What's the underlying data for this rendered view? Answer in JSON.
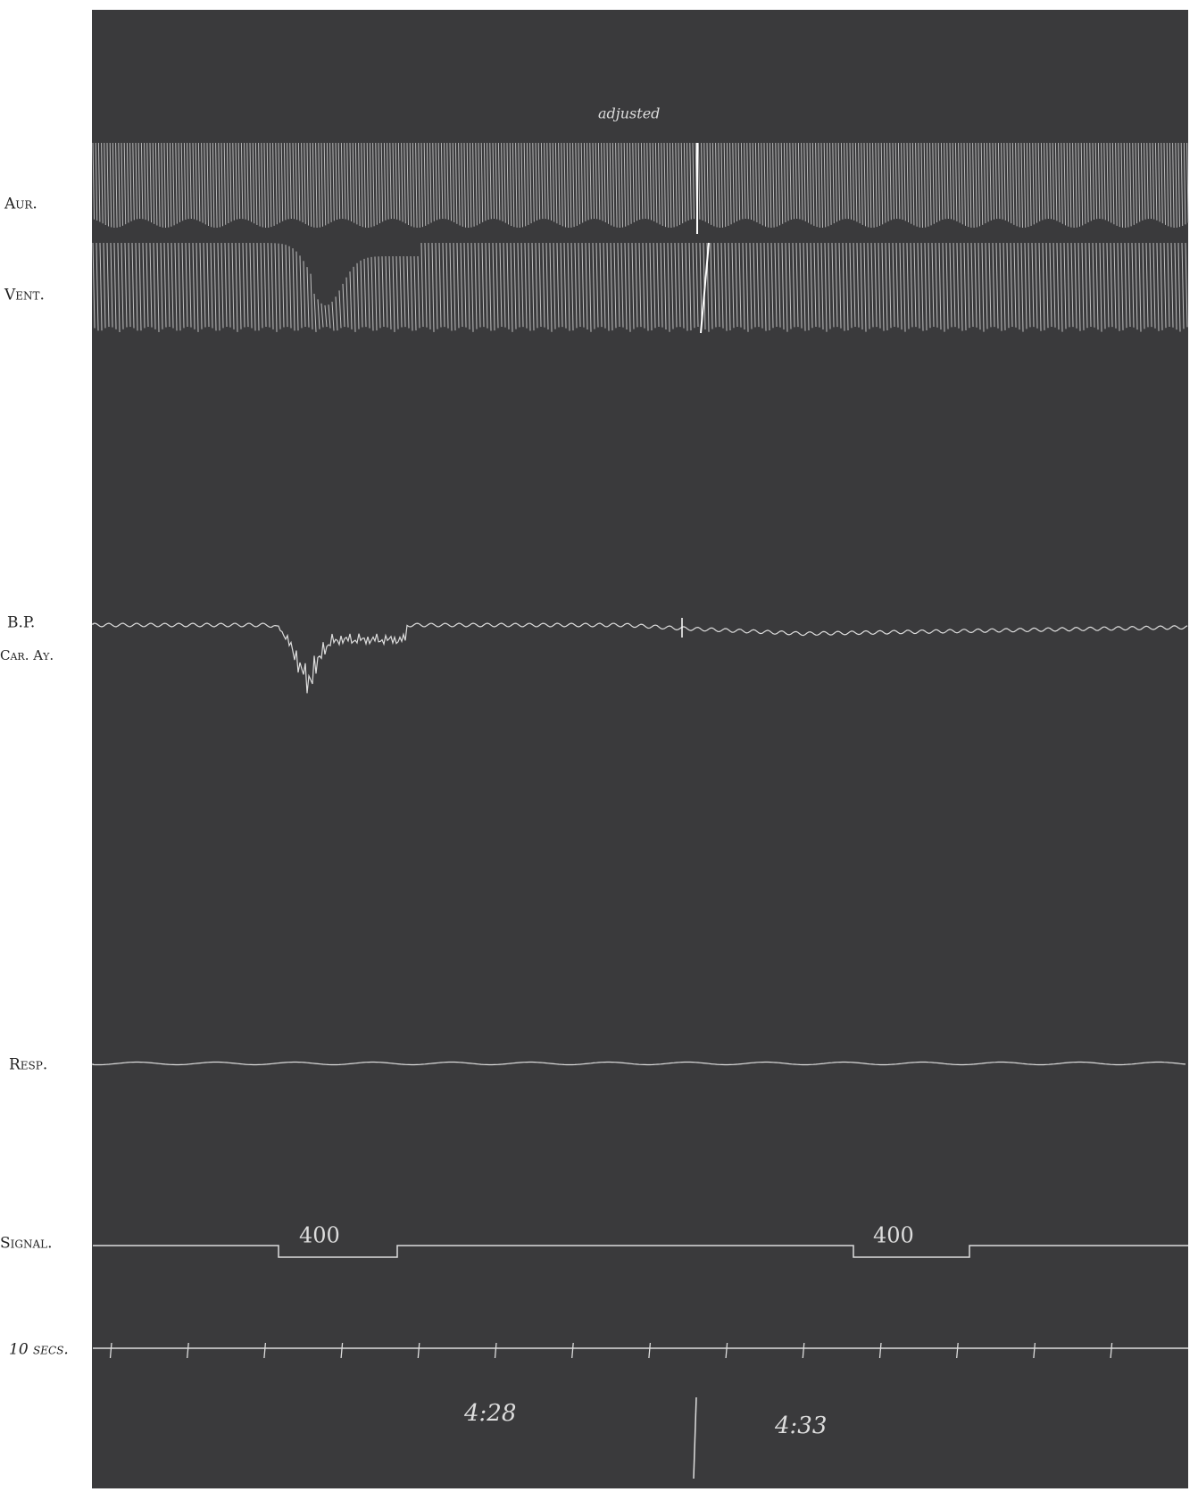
{
  "labels": {
    "aur": "Aur.",
    "vent": "Vent.",
    "bp": "B.P.",
    "car": "Car. Ay.",
    "resp": "Resp.",
    "signal": "Signal.",
    "time": "10 secs."
  },
  "annotation": "adjusted",
  "signal_marks": [
    "400",
    "400"
  ],
  "times": [
    "4:28",
    "4:33"
  ]
}
